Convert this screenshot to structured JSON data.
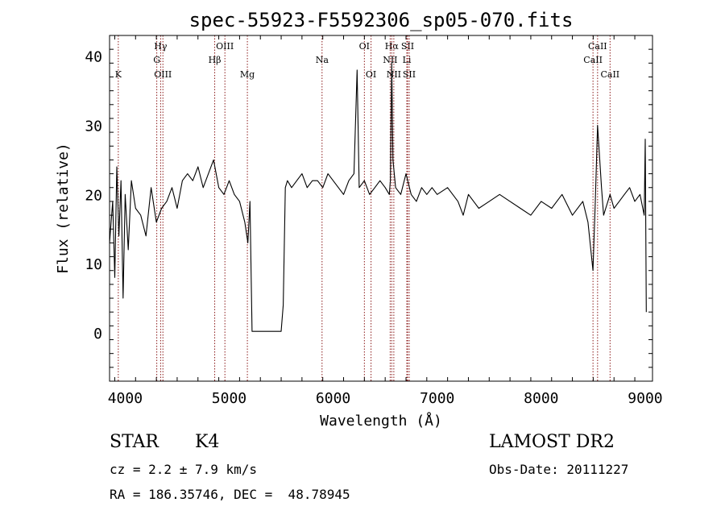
{
  "chart_data": {
    "type": "line",
    "title": "spec-55923-F5592306_sp05-070.fits",
    "xlabel": "Wavelength (Å)",
    "ylabel": "Flux (relative)",
    "xlim": [
      3850,
      9070
    ],
    "ylim": [
      -7,
      43
    ],
    "x_ticks": [
      4000,
      5000,
      6000,
      7000,
      8000,
      9000
    ],
    "y_ticks": [
      0,
      10,
      20,
      30,
      40
    ],
    "grid": false,
    "series": [
      {
        "x": [
          3850,
          3880,
          3900,
          3920,
          3940,
          3960,
          3980,
          4000,
          4030,
          4060,
          4100,
          4150,
          4200,
          4250,
          4300,
          4350,
          4400,
          4450,
          4500,
          4550,
          4600,
          4650,
          4700,
          4750,
          4800,
          4850,
          4900,
          4950,
          5000,
          5050,
          5100,
          5150,
          5180,
          5200,
          5220,
          5250,
          5300,
          5350,
          5400,
          5450,
          5500,
          5520,
          5540,
          5560,
          5600,
          5650,
          5700,
          5750,
          5800,
          5850,
          5900,
          5950,
          6000,
          6050,
          6100,
          6150,
          6200,
          6230,
          6250,
          6300,
          6350,
          6400,
          6450,
          6500,
          6540,
          6550,
          6563,
          6575,
          6600,
          6650,
          6700,
          6750,
          6800,
          6850,
          6900,
          6950,
          7000,
          7100,
          7200,
          7250,
          7300,
          7400,
          7500,
          7600,
          7700,
          7800,
          7900,
          8000,
          8100,
          8200,
          8300,
          8400,
          8450,
          8498,
          8520,
          8542,
          8580,
          8600,
          8662,
          8700,
          8750,
          8800,
          8850,
          8900,
          8950,
          8990,
          9000,
          9010
        ],
        "y": [
          13,
          19,
          8,
          24,
          14,
          22,
          5,
          20,
          12,
          22,
          18,
          17,
          14,
          21,
          16,
          18,
          19,
          21,
          18,
          22,
          23,
          22,
          24,
          21,
          23,
          25,
          21,
          20,
          22,
          20,
          19,
          16,
          13,
          19,
          0.2,
          0.2,
          0.2,
          0.2,
          0.2,
          0.2,
          0.2,
          4,
          21,
          22,
          21,
          22,
          23,
          21,
          22,
          22,
          21,
          23,
          22,
          21,
          20,
          22,
          23,
          38,
          21,
          22,
          20,
          21,
          22,
          21,
          20,
          22,
          39,
          25,
          21,
          20,
          23,
          20,
          19,
          21,
          20,
          21,
          20,
          21,
          19,
          17,
          20,
          18,
          19,
          20,
          19,
          18,
          17,
          19,
          18,
          20,
          17,
          19,
          16,
          9,
          19,
          30,
          21,
          17,
          20,
          18,
          19,
          20,
          21,
          19,
          20,
          17,
          28,
          3
        ]
      }
    ],
    "lines": [
      {
        "label": "K",
        "x": 3934,
        "row": 2
      },
      {
        "label": "Hγ",
        "x": 4341,
        "row": 0
      },
      {
        "label": "G",
        "x": 4304,
        "row": 1
      },
      {
        "label": "OIII",
        "x": 4363,
        "row": 2
      },
      {
        "label": "OIII",
        "x": 4959,
        "row": 0
      },
      {
        "label": "Hβ",
        "x": 4861,
        "row": 1
      },
      {
        "label": "Mg",
        "x": 5175,
        "row": 2
      },
      {
        "label": "Na",
        "x": 5893,
        "row": 1
      },
      {
        "label": "OI",
        "x": 6300,
        "row": 0
      },
      {
        "label": "OI",
        "x": 6364,
        "row": 2
      },
      {
        "label": "Hα",
        "x": 6563,
        "row": 0
      },
      {
        "label": "SII",
        "x": 6716,
        "row": 0
      },
      {
        "label": "NII",
        "x": 6548,
        "row": 1
      },
      {
        "label": "Li",
        "x": 6708,
        "row": 1
      },
      {
        "label": "NII",
        "x": 6583,
        "row": 2
      },
      {
        "label": "SII",
        "x": 6731,
        "row": 2
      },
      {
        "label": "CaII",
        "x": 8542,
        "row": 0
      },
      {
        "label": "CaII",
        "x": 8498,
        "row": 1
      },
      {
        "label": "CaII",
        "x": 8662,
        "row": 2
      }
    ]
  },
  "info": {
    "type_label": "STAR",
    "subclass": "K4",
    "survey": "LAMOST DR2",
    "cz": "cz = 2.2 ± 7.9 km/s",
    "obs_date": "Obs-Date: 20111227",
    "coords": "RA = 186.35746, DEC =  48.78945"
  }
}
